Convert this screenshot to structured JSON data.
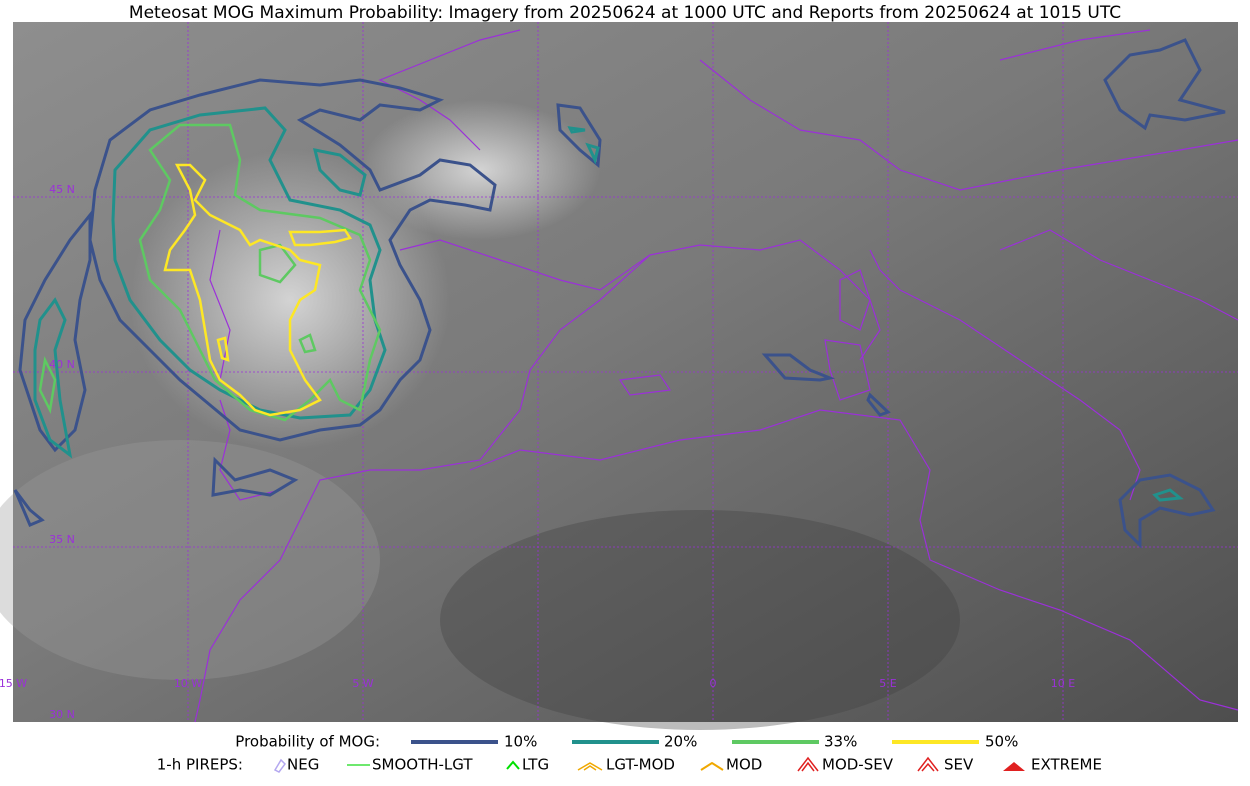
{
  "header": {
    "title": "Meteosat MOG Maximum Probability: Imagery from 20250624 at 1000 UTC and Reports from 20250624 at 1015 UTC"
  },
  "map": {
    "lat_labels": [
      "45 N",
      "40 N",
      "35 N",
      "30 N"
    ],
    "lon_labels": [
      "15 W",
      "10 W",
      "5 W",
      "0",
      "5 E",
      "10 E"
    ]
  },
  "legend": {
    "probability": {
      "label": "Probability of MOG:",
      "items": [
        "10%",
        "20%",
        "33%",
        "50%"
      ]
    },
    "pireps": {
      "label": "1-h PIREPS:",
      "items": [
        "NEG",
        "SMOOTH-LGT",
        "LTG",
        "LGT-MOD",
        "MOD",
        "MOD-SEV",
        "SEV",
        "EXTREME"
      ]
    }
  }
}
